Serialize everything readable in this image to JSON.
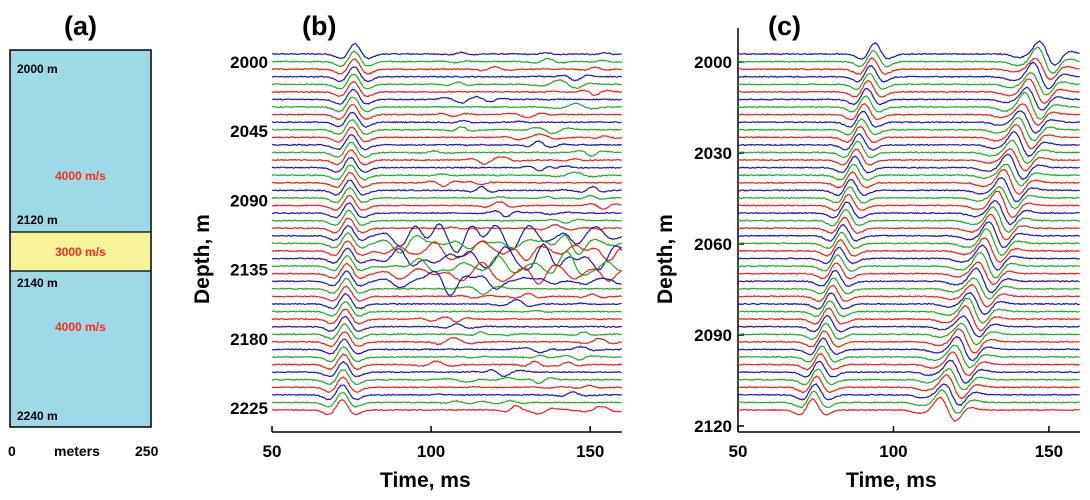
{
  "chart_data": [
    {
      "type": "diagram",
      "panel_label": "(a)",
      "xlabel": "meters",
      "xlim": [
        0,
        250
      ],
      "x_ticks": [
        "0",
        "250"
      ],
      "depth_range_m": [
        2000,
        2240
      ],
      "layers": [
        {
          "top_m": 2000,
          "bottom_m": 2120,
          "velocity": "4000 m/s",
          "fill": "#9dd9e6"
        },
        {
          "top_m": 2120,
          "bottom_m": 2140,
          "velocity": "3000 m/s",
          "fill": "#f7f39a"
        },
        {
          "top_m": 2140,
          "bottom_m": 2240,
          "velocity": "4000 m/s",
          "fill": "#9dd9e6"
        }
      ],
      "depth_labels": [
        "2000 m",
        "2120 m",
        "2140 m",
        "2240 m"
      ]
    },
    {
      "type": "line",
      "panel_label": "(b)",
      "xlabel": "Time, ms",
      "ylabel": "Depth, m",
      "xlim": [
        50,
        160
      ],
      "x_ticks": [
        50,
        100,
        150
      ],
      "ylim": [
        2000,
        2225
      ],
      "y_ticks": [
        2000,
        2045,
        2090,
        2135,
        2180,
        2225
      ],
      "trace_count": 48,
      "trace_colors": [
        "#1a1aa8",
        "#22a822",
        "#e8221a"
      ],
      "direct_arrival": {
        "description": "first arrival",
        "t_ms_top": 76,
        "t_ms_bottom": 72
      },
      "low_velocity_zone": {
        "depth_top_m": 2120,
        "depth_bottom_m": 2140,
        "onset_ms": 90,
        "end_ms": 160
      }
    },
    {
      "type": "line",
      "panel_label": "(c)",
      "xlabel": "Time, ms",
      "ylabel": "Depth, m",
      "xlim": [
        50,
        160
      ],
      "x_ticks": [
        50,
        100,
        150
      ],
      "ylim": [
        2000,
        2120
      ],
      "y_ticks": [
        2000,
        2030,
        2060,
        2090,
        2120
      ],
      "trace_count": 48,
      "trace_colors": [
        "#1a1aa8",
        "#22a822",
        "#e8221a"
      ],
      "downgoing_arrival": {
        "t_ms_at_top": 94,
        "t_ms_at_bottom": 74
      },
      "upgoing_arrival": {
        "t_ms_at_top": 147,
        "t_ms_at_bottom": 115
      }
    }
  ]
}
